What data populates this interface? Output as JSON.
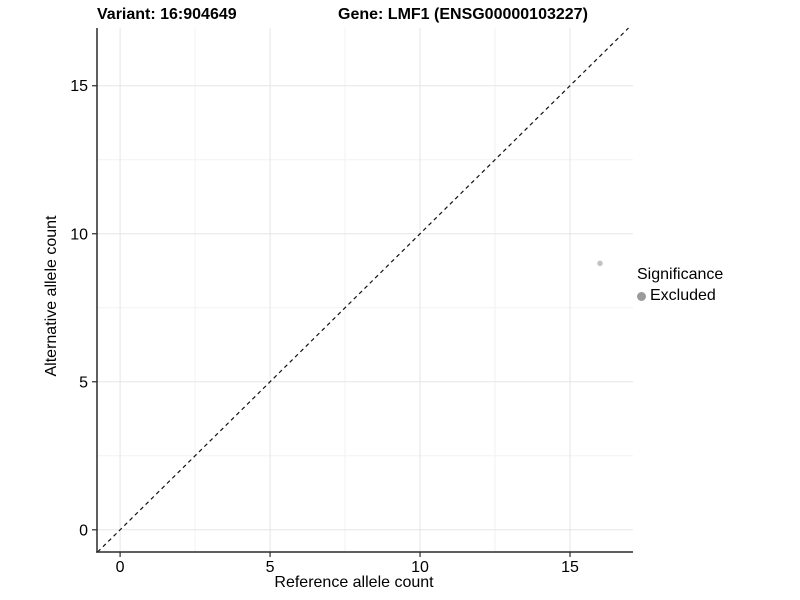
{
  "titles": {
    "variant": "Variant: 16:904649",
    "gene": "Gene: LMF1 (ENSG00000103227)"
  },
  "chart_data": {
    "type": "scatter",
    "xlabel": "Reference allele count",
    "ylabel": "Alternative allele count",
    "xlim": [
      -0.77,
      17.1
    ],
    "ylim": [
      -0.75,
      16.95
    ],
    "xticks": [
      0,
      5,
      10,
      15
    ],
    "yticks": [
      0,
      5,
      10,
      15
    ],
    "xticks_minor": [
      2.5,
      7.5,
      12.5
    ],
    "yticks_minor": [
      2.5,
      7.5,
      12.5
    ],
    "grid": true,
    "legend_position": "right",
    "series": [
      {
        "name": "Excluded",
        "points": [
          {
            "x": 16,
            "y": 9
          }
        ]
      }
    ],
    "reference_line": {
      "slope": 1,
      "intercept": 0,
      "style": "dashed"
    },
    "colors": {
      "point": "#c4c4c4",
      "grid_major": "#e5e5e5",
      "grid_minor": "#f2f2f2",
      "axis": "#2a2a2a",
      "tick_text": "#000000",
      "dashed_line": "#111111"
    }
  },
  "legend": {
    "title": "Significance",
    "items": [
      {
        "label": "Excluded",
        "color": "#9b9b9b"
      }
    ]
  }
}
